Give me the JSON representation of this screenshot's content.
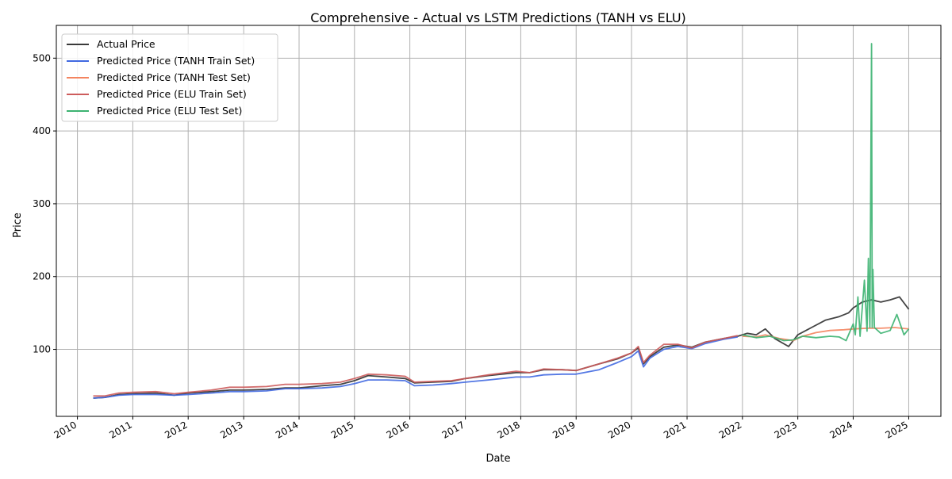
{
  "chart_data": {
    "type": "line",
    "title": "Comprehensive - Actual vs LSTM Predictions (TANH vs ELU)",
    "xlabel": "Date",
    "ylabel": "Price",
    "xlim": [
      "2009-08-15",
      "2025-08-01"
    ],
    "ylim": [
      8,
      545
    ],
    "x_ticks": [
      "2010",
      "2011",
      "2012",
      "2013",
      "2014",
      "2015",
      "2016",
      "2017",
      "2018",
      "2019",
      "2020",
      "2021",
      "2022",
      "2023",
      "2024",
      "2025"
    ],
    "y_ticks": [
      100,
      200,
      300,
      400,
      500
    ],
    "grid": true,
    "legend_position": "upper left",
    "series": [
      {
        "name": "Actual Price",
        "color": "#3a3a3a",
        "points": [
          [
            "2010-04-15",
            33
          ],
          [
            "2010-07-01",
            34
          ],
          [
            "2010-10-01",
            38
          ],
          [
            "2011-01-01",
            39
          ],
          [
            "2011-06-01",
            40
          ],
          [
            "2011-10-01",
            37
          ],
          [
            "2012-01-01",
            40
          ],
          [
            "2012-06-01",
            42
          ],
          [
            "2012-10-01",
            44
          ],
          [
            "2013-01-01",
            44
          ],
          [
            "2013-06-01",
            45
          ],
          [
            "2013-10-01",
            47
          ],
          [
            "2014-01-01",
            47
          ],
          [
            "2014-06-01",
            50
          ],
          [
            "2014-10-01",
            52
          ],
          [
            "2015-01-01",
            57
          ],
          [
            "2015-04-01",
            64
          ],
          [
            "2015-08-01",
            62
          ],
          [
            "2015-12-01",
            60
          ],
          [
            "2016-02-01",
            54
          ],
          [
            "2016-06-01",
            55
          ],
          [
            "2016-10-01",
            56
          ],
          [
            "2017-01-01",
            60
          ],
          [
            "2017-06-01",
            64
          ],
          [
            "2017-12-01",
            68
          ],
          [
            "2018-03-01",
            68
          ],
          [
            "2018-06-01",
            72
          ],
          [
            "2018-10-01",
            72
          ],
          [
            "2019-01-01",
            71
          ],
          [
            "2019-06-01",
            80
          ],
          [
            "2019-10-01",
            87
          ],
          [
            "2020-01-01",
            95
          ],
          [
            "2020-02-15",
            102
          ],
          [
            "2020-03-20",
            80
          ],
          [
            "2020-05-01",
            90
          ],
          [
            "2020-08-01",
            103
          ],
          [
            "2020-11-01",
            106
          ],
          [
            "2021-02-01",
            103
          ],
          [
            "2021-05-01",
            110
          ],
          [
            "2021-09-01",
            115
          ],
          [
            "2021-12-01",
            118
          ],
          [
            "2022-02-01",
            122
          ],
          [
            "2022-04-01",
            120
          ],
          [
            "2022-06-01",
            128
          ],
          [
            "2022-08-01",
            115
          ],
          [
            "2022-11-01",
            104
          ],
          [
            "2023-01-01",
            120
          ],
          [
            "2023-04-01",
            130
          ],
          [
            "2023-07-01",
            140
          ],
          [
            "2023-10-01",
            145
          ],
          [
            "2023-12-01",
            150
          ],
          [
            "2024-01-01",
            157
          ],
          [
            "2024-03-01",
            165
          ],
          [
            "2024-05-01",
            168
          ],
          [
            "2024-07-01",
            165
          ],
          [
            "2024-09-01",
            168
          ],
          [
            "2024-11-01",
            172
          ],
          [
            "2025-01-01",
            155
          ]
        ]
      },
      {
        "name": "Predicted Price (TANH Train Set)",
        "color": "#4169e1",
        "points": [
          [
            "2010-04-15",
            33
          ],
          [
            "2010-07-01",
            34
          ],
          [
            "2010-10-01",
            37
          ],
          [
            "2011-01-01",
            38
          ],
          [
            "2011-06-01",
            38
          ],
          [
            "2011-10-01",
            37
          ],
          [
            "2012-01-01",
            38
          ],
          [
            "2012-06-01",
            40
          ],
          [
            "2012-10-01",
            42
          ],
          [
            "2013-01-01",
            42
          ],
          [
            "2013-06-01",
            43
          ],
          [
            "2013-10-01",
            46
          ],
          [
            "2014-01-01",
            46
          ],
          [
            "2014-06-01",
            47
          ],
          [
            "2014-10-01",
            49
          ],
          [
            "2015-01-01",
            53
          ],
          [
            "2015-04-01",
            58
          ],
          [
            "2015-08-01",
            58
          ],
          [
            "2015-12-01",
            57
          ],
          [
            "2016-02-01",
            50
          ],
          [
            "2016-06-01",
            51
          ],
          [
            "2016-10-01",
            53
          ],
          [
            "2017-01-01",
            55
          ],
          [
            "2017-06-01",
            58
          ],
          [
            "2017-12-01",
            62
          ],
          [
            "2018-03-01",
            62
          ],
          [
            "2018-06-01",
            65
          ],
          [
            "2018-10-01",
            66
          ],
          [
            "2019-01-01",
            66
          ],
          [
            "2019-06-01",
            72
          ],
          [
            "2019-10-01",
            82
          ],
          [
            "2020-01-01",
            90
          ],
          [
            "2020-02-15",
            98
          ],
          [
            "2020-03-20",
            76
          ],
          [
            "2020-05-01",
            88
          ],
          [
            "2020-08-01",
            100
          ],
          [
            "2020-11-01",
            104
          ],
          [
            "2021-02-01",
            101
          ],
          [
            "2021-05-01",
            108
          ],
          [
            "2021-09-01",
            114
          ],
          [
            "2021-12-01",
            117
          ]
        ]
      },
      {
        "name": "Predicted Price (TANH Test Set)",
        "color": "#f4845f",
        "points": [
          [
            "2022-01-01",
            118
          ],
          [
            "2022-04-01",
            117
          ],
          [
            "2022-06-01",
            120
          ],
          [
            "2022-09-01",
            115
          ],
          [
            "2022-12-01",
            112
          ],
          [
            "2023-02-01",
            118
          ],
          [
            "2023-05-01",
            123
          ],
          [
            "2023-08-01",
            126
          ],
          [
            "2023-11-01",
            127
          ],
          [
            "2024-01-01",
            128
          ],
          [
            "2024-04-01",
            129
          ],
          [
            "2024-07-01",
            129
          ],
          [
            "2024-10-01",
            130
          ],
          [
            "2025-01-01",
            128
          ]
        ]
      },
      {
        "name": "Predicted Price (ELU Train Set)",
        "color": "#cd5c5c",
        "points": [
          [
            "2010-04-15",
            36
          ],
          [
            "2010-07-01",
            36
          ],
          [
            "2010-10-01",
            40
          ],
          [
            "2011-01-01",
            41
          ],
          [
            "2011-06-01",
            42
          ],
          [
            "2011-10-01",
            39
          ],
          [
            "2012-01-01",
            41
          ],
          [
            "2012-06-01",
            44
          ],
          [
            "2012-10-01",
            48
          ],
          [
            "2013-01-01",
            48
          ],
          [
            "2013-06-01",
            49
          ],
          [
            "2013-10-01",
            52
          ],
          [
            "2014-01-01",
            52
          ],
          [
            "2014-06-01",
            53
          ],
          [
            "2014-10-01",
            55
          ],
          [
            "2015-01-01",
            60
          ],
          [
            "2015-04-01",
            66
          ],
          [
            "2015-08-01",
            65
          ],
          [
            "2015-12-01",
            63
          ],
          [
            "2016-02-01",
            55
          ],
          [
            "2016-06-01",
            56
          ],
          [
            "2016-10-01",
            57
          ],
          [
            "2017-01-01",
            60
          ],
          [
            "2017-06-01",
            65
          ],
          [
            "2017-12-01",
            70
          ],
          [
            "2018-03-01",
            68
          ],
          [
            "2018-06-01",
            73
          ],
          [
            "2018-10-01",
            72
          ],
          [
            "2019-01-01",
            71
          ],
          [
            "2019-06-01",
            80
          ],
          [
            "2019-10-01",
            88
          ],
          [
            "2020-01-01",
            95
          ],
          [
            "2020-02-15",
            104
          ],
          [
            "2020-03-20",
            82
          ],
          [
            "2020-05-01",
            92
          ],
          [
            "2020-08-01",
            107
          ],
          [
            "2020-11-01",
            107
          ],
          [
            "2021-02-01",
            102
          ],
          [
            "2021-05-01",
            110
          ],
          [
            "2021-09-01",
            115
          ],
          [
            "2021-12-01",
            119
          ]
        ]
      },
      {
        "name": "Predicted Price (ELU Test Set)",
        "color": "#3cb371",
        "points": [
          [
            "2022-01-01",
            120
          ],
          [
            "2022-04-01",
            116
          ],
          [
            "2022-07-01",
            118
          ],
          [
            "2022-10-01",
            112
          ],
          [
            "2022-12-01",
            113
          ],
          [
            "2023-02-01",
            118
          ],
          [
            "2023-05-01",
            116
          ],
          [
            "2023-08-01",
            118
          ],
          [
            "2023-10-01",
            117
          ],
          [
            "2023-11-15",
            112
          ],
          [
            "2024-01-01",
            135
          ],
          [
            "2024-01-15",
            120
          ],
          [
            "2024-02-01",
            172
          ],
          [
            "2024-02-15",
            118
          ],
          [
            "2024-03-15",
            195
          ],
          [
            "2024-04-01",
            125
          ],
          [
            "2024-04-10",
            225
          ],
          [
            "2024-04-20",
            130
          ],
          [
            "2024-05-01",
            520
          ],
          [
            "2024-05-05",
            130
          ],
          [
            "2024-05-10",
            210
          ],
          [
            "2024-05-20",
            130
          ],
          [
            "2024-07-01",
            122
          ],
          [
            "2024-09-01",
            126
          ],
          [
            "2024-10-15",
            148
          ],
          [
            "2024-12-01",
            120
          ],
          [
            "2025-01-01",
            128
          ]
        ]
      }
    ]
  }
}
